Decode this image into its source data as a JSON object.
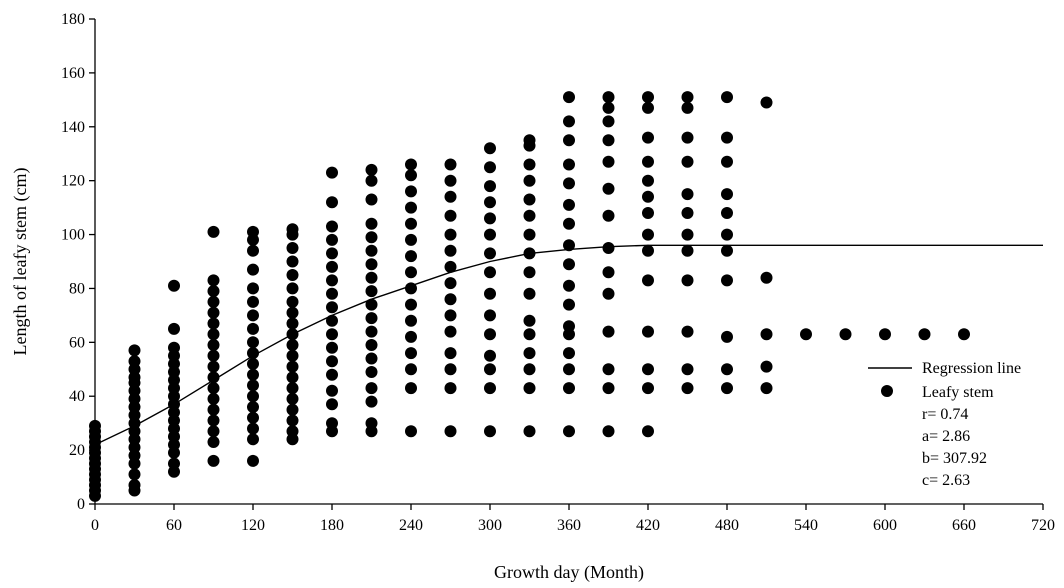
{
  "chart_data": {
    "type": "scatter",
    "xlabel": "Growth day (Month)",
    "ylabel": "Length of leafy stem (cm)",
    "xlim": [
      0,
      720
    ],
    "ylim": [
      0,
      180
    ],
    "xticks": [
      0,
      60,
      120,
      180,
      240,
      300,
      360,
      420,
      480,
      540,
      600,
      660,
      720
    ],
    "yticks": [
      0,
      20,
      40,
      60,
      80,
      100,
      120,
      140,
      160,
      180
    ],
    "grid": false,
    "legend": {
      "position": "right",
      "regression_label": "Regression line",
      "points_label": "Leafy stem",
      "stats": [
        "r= 0.74",
        "a= 2.86",
        "b= 307.92",
        "c= 2.63"
      ]
    },
    "series": [
      {
        "type": "scatter",
        "color": "#000000",
        "points": [
          [
            0,
            3
          ],
          [
            0,
            5
          ],
          [
            0,
            7
          ],
          [
            0,
            9
          ],
          [
            0,
            11
          ],
          [
            0,
            13
          ],
          [
            0,
            15
          ],
          [
            0,
            17
          ],
          [
            0,
            19
          ],
          [
            0,
            21
          ],
          [
            0,
            23
          ],
          [
            0,
            25
          ],
          [
            0,
            27
          ],
          [
            0,
            29
          ],
          [
            30,
            5
          ],
          [
            30,
            7
          ],
          [
            30,
            11
          ],
          [
            30,
            15
          ],
          [
            30,
            18
          ],
          [
            30,
            21
          ],
          [
            30,
            24
          ],
          [
            30,
            27
          ],
          [
            30,
            30
          ],
          [
            30,
            33
          ],
          [
            30,
            36
          ],
          [
            30,
            39
          ],
          [
            30,
            42
          ],
          [
            30,
            45
          ],
          [
            30,
            47
          ],
          [
            30,
            50
          ],
          [
            30,
            53
          ],
          [
            30,
            57
          ],
          [
            60,
            12
          ],
          [
            60,
            15
          ],
          [
            60,
            19
          ],
          [
            60,
            22
          ],
          [
            60,
            25
          ],
          [
            60,
            28
          ],
          [
            60,
            31
          ],
          [
            60,
            34
          ],
          [
            60,
            37
          ],
          [
            60,
            40
          ],
          [
            60,
            43
          ],
          [
            60,
            46
          ],
          [
            60,
            49
          ],
          [
            60,
            52
          ],
          [
            60,
            55
          ],
          [
            60,
            58
          ],
          [
            60,
            65
          ],
          [
            60,
            81
          ],
          [
            90,
            16
          ],
          [
            90,
            23
          ],
          [
            90,
            27
          ],
          [
            90,
            31
          ],
          [
            90,
            35
          ],
          [
            90,
            39
          ],
          [
            90,
            43
          ],
          [
            90,
            47
          ],
          [
            90,
            51
          ],
          [
            90,
            55
          ],
          [
            90,
            59
          ],
          [
            90,
            63
          ],
          [
            90,
            67
          ],
          [
            90,
            71
          ],
          [
            90,
            75
          ],
          [
            90,
            79
          ],
          [
            90,
            83
          ],
          [
            90,
            101
          ],
          [
            120,
            16
          ],
          [
            120,
            24
          ],
          [
            120,
            28
          ],
          [
            120,
            32
          ],
          [
            120,
            36
          ],
          [
            120,
            40
          ],
          [
            120,
            44
          ],
          [
            120,
            48
          ],
          [
            120,
            52
          ],
          [
            120,
            56
          ],
          [
            120,
            60
          ],
          [
            120,
            65
          ],
          [
            120,
            70
          ],
          [
            120,
            75
          ],
          [
            120,
            80
          ],
          [
            120,
            87
          ],
          [
            120,
            94
          ],
          [
            120,
            98
          ],
          [
            120,
            101
          ],
          [
            150,
            24
          ],
          [
            150,
            27
          ],
          [
            150,
            31
          ],
          [
            150,
            35
          ],
          [
            150,
            39
          ],
          [
            150,
            43
          ],
          [
            150,
            47
          ],
          [
            150,
            51
          ],
          [
            150,
            55
          ],
          [
            150,
            59
          ],
          [
            150,
            63
          ],
          [
            150,
            67
          ],
          [
            150,
            71
          ],
          [
            150,
            75
          ],
          [
            150,
            80
          ],
          [
            150,
            85
          ],
          [
            150,
            90
          ],
          [
            150,
            95
          ],
          [
            150,
            100
          ],
          [
            150,
            102
          ],
          [
            180,
            27
          ],
          [
            180,
            30
          ],
          [
            180,
            37
          ],
          [
            180,
            42
          ],
          [
            180,
            48
          ],
          [
            180,
            53
          ],
          [
            180,
            58
          ],
          [
            180,
            63
          ],
          [
            180,
            68
          ],
          [
            180,
            73
          ],
          [
            180,
            78
          ],
          [
            180,
            83
          ],
          [
            180,
            88
          ],
          [
            180,
            93
          ],
          [
            180,
            98
          ],
          [
            180,
            103
          ],
          [
            180,
            112
          ],
          [
            180,
            123
          ],
          [
            210,
            27
          ],
          [
            210,
            30
          ],
          [
            210,
            38
          ],
          [
            210,
            43
          ],
          [
            210,
            49
          ],
          [
            210,
            54
          ],
          [
            210,
            59
          ],
          [
            210,
            64
          ],
          [
            210,
            69
          ],
          [
            210,
            74
          ],
          [
            210,
            79
          ],
          [
            210,
            84
          ],
          [
            210,
            89
          ],
          [
            210,
            94
          ],
          [
            210,
            99
          ],
          [
            210,
            104
          ],
          [
            210,
            113
          ],
          [
            210,
            120
          ],
          [
            210,
            124
          ],
          [
            240,
            27
          ],
          [
            240,
            43
          ],
          [
            240,
            50
          ],
          [
            240,
            56
          ],
          [
            240,
            62
          ],
          [
            240,
            68
          ],
          [
            240,
            74
          ],
          [
            240,
            80
          ],
          [
            240,
            86
          ],
          [
            240,
            92
          ],
          [
            240,
            98
          ],
          [
            240,
            104
          ],
          [
            240,
            110
          ],
          [
            240,
            116
          ],
          [
            240,
            122
          ],
          [
            240,
            126
          ],
          [
            270,
            27
          ],
          [
            270,
            43
          ],
          [
            270,
            50
          ],
          [
            270,
            56
          ],
          [
            270,
            64
          ],
          [
            270,
            70
          ],
          [
            270,
            76
          ],
          [
            270,
            82
          ],
          [
            270,
            88
          ],
          [
            270,
            94
          ],
          [
            270,
            100
          ],
          [
            270,
            107
          ],
          [
            270,
            114
          ],
          [
            270,
            120
          ],
          [
            270,
            126
          ],
          [
            300,
            27
          ],
          [
            300,
            43
          ],
          [
            300,
            50
          ],
          [
            300,
            55
          ],
          [
            300,
            63
          ],
          [
            300,
            70
          ],
          [
            300,
            78
          ],
          [
            300,
            86
          ],
          [
            300,
            93
          ],
          [
            300,
            100
          ],
          [
            300,
            106
          ],
          [
            300,
            112
          ],
          [
            300,
            118
          ],
          [
            300,
            125
          ],
          [
            300,
            132
          ],
          [
            330,
            27
          ],
          [
            330,
            43
          ],
          [
            330,
            50
          ],
          [
            330,
            56
          ],
          [
            330,
            63
          ],
          [
            330,
            68
          ],
          [
            330,
            78
          ],
          [
            330,
            86
          ],
          [
            330,
            93
          ],
          [
            330,
            100
          ],
          [
            330,
            107
          ],
          [
            330,
            113
          ],
          [
            330,
            120
          ],
          [
            330,
            126
          ],
          [
            330,
            133
          ],
          [
            330,
            135
          ],
          [
            360,
            27
          ],
          [
            360,
            43
          ],
          [
            360,
            50
          ],
          [
            360,
            56
          ],
          [
            360,
            63
          ],
          [
            360,
            66
          ],
          [
            360,
            74
          ],
          [
            360,
            81
          ],
          [
            360,
            89
          ],
          [
            360,
            96
          ],
          [
            360,
            104
          ],
          [
            360,
            111
          ],
          [
            360,
            119
          ],
          [
            360,
            126
          ],
          [
            360,
            135
          ],
          [
            360,
            142
          ],
          [
            360,
            151
          ],
          [
            390,
            27
          ],
          [
            390,
            43
          ],
          [
            390,
            50
          ],
          [
            390,
            64
          ],
          [
            390,
            78
          ],
          [
            390,
            86
          ],
          [
            390,
            95
          ],
          [
            390,
            107
          ],
          [
            390,
            117
          ],
          [
            390,
            127
          ],
          [
            390,
            135
          ],
          [
            390,
            142
          ],
          [
            390,
            147
          ],
          [
            390,
            151
          ],
          [
            420,
            27
          ],
          [
            420,
            43
          ],
          [
            420,
            50
          ],
          [
            420,
            64
          ],
          [
            420,
            83
          ],
          [
            420,
            94
          ],
          [
            420,
            100
          ],
          [
            420,
            108
          ],
          [
            420,
            114
          ],
          [
            420,
            120
          ],
          [
            420,
            127
          ],
          [
            420,
            136
          ],
          [
            420,
            147
          ],
          [
            420,
            151
          ],
          [
            450,
            43
          ],
          [
            450,
            50
          ],
          [
            450,
            64
          ],
          [
            450,
            83
          ],
          [
            450,
            94
          ],
          [
            450,
            100
          ],
          [
            450,
            108
          ],
          [
            450,
            115
          ],
          [
            450,
            127
          ],
          [
            450,
            136
          ],
          [
            450,
            147
          ],
          [
            450,
            151
          ],
          [
            480,
            43
          ],
          [
            480,
            50
          ],
          [
            480,
            62
          ],
          [
            480,
            83
          ],
          [
            480,
            94
          ],
          [
            480,
            100
          ],
          [
            480,
            108
          ],
          [
            480,
            115
          ],
          [
            480,
            127
          ],
          [
            480,
            136
          ],
          [
            480,
            151
          ],
          [
            510,
            43
          ],
          [
            510,
            51
          ],
          [
            510,
            63
          ],
          [
            510,
            84
          ],
          [
            510,
            149
          ],
          [
            540,
            63
          ],
          [
            570,
            63
          ],
          [
            600,
            63
          ],
          [
            630,
            63
          ],
          [
            660,
            63
          ]
        ]
      },
      {
        "type": "line",
        "color": "#000000",
        "x": [
          0,
          30,
          60,
          90,
          120,
          150,
          180,
          210,
          240,
          270,
          300,
          330,
          360,
          390,
          420,
          480,
          540,
          600,
          660,
          720
        ],
        "y": [
          22,
          29,
          37,
          46,
          55,
          63,
          70,
          76,
          81,
          86,
          90,
          93,
          94.5,
          95.5,
          96,
          96,
          96,
          96,
          96,
          96
        ]
      }
    ]
  }
}
